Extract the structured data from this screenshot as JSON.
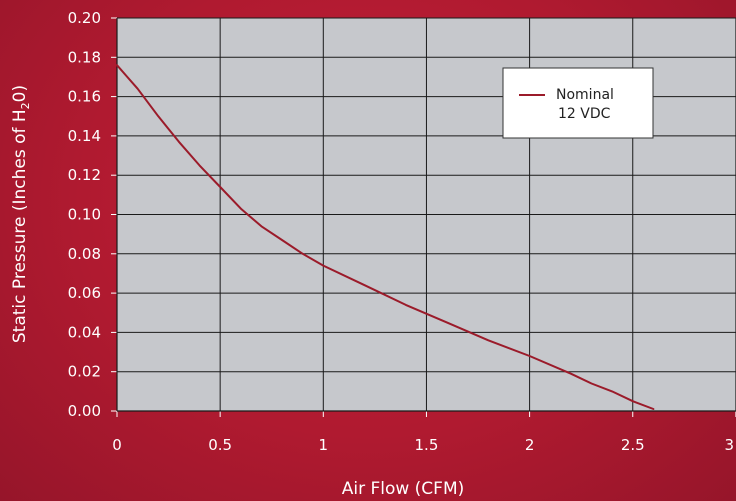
{
  "chart_data": {
    "type": "line",
    "title": "",
    "xlabel": "Air Flow (CFM)",
    "ylabel_parts": [
      "Static Pressure (Inches of H",
      "2",
      "0)"
    ],
    "xlim": [
      0,
      3
    ],
    "ylim": [
      0,
      0.2
    ],
    "x_ticks": [
      "0",
      "0.5",
      "1",
      "1.5",
      "2",
      "2.5",
      "3"
    ],
    "y_ticks": [
      "0.00",
      "0.02",
      "0.04",
      "0.06",
      "0.08",
      "0.10",
      "0.12",
      "0.14",
      "0.16",
      "0.18",
      "0.20"
    ],
    "grid": true,
    "legend": {
      "position": "top-right",
      "lines": [
        "Nominal",
        "12 VDC"
      ]
    },
    "series": [
      {
        "name": "Nominal 12 VDC",
        "color": "#9b1b2a",
        "x": [
          0,
          0.1,
          0.2,
          0.3,
          0.4,
          0.5,
          0.6,
          0.7,
          0.8,
          0.9,
          1.0,
          1.2,
          1.4,
          1.6,
          1.8,
          2.0,
          2.2,
          2.3,
          2.4,
          2.5,
          2.6
        ],
        "y": [
          0.176,
          0.164,
          0.15,
          0.137,
          0.125,
          0.114,
          0.103,
          0.094,
          0.087,
          0.08,
          0.074,
          0.064,
          0.054,
          0.045,
          0.036,
          0.028,
          0.019,
          0.014,
          0.01,
          0.005,
          0.001
        ]
      }
    ]
  }
}
